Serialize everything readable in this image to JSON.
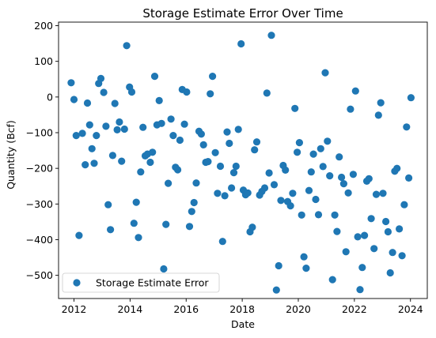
{
  "chart_data": {
    "type": "scatter",
    "title": "Storage Estimate Error Over Time",
    "xlabel": "Date",
    "ylabel": "Quantity (Bcf)",
    "xlim": [
      2011.45,
      2024.6
    ],
    "ylim": [
      -565,
      210
    ],
    "xticks": [
      2012,
      2014,
      2016,
      2018,
      2020,
      2022,
      2024
    ],
    "yticks": [
      200,
      100,
      0,
      -100,
      -200,
      -300,
      -400,
      -500
    ],
    "grid": false,
    "legend_position": "lower-left",
    "color": "#1f77b4",
    "series": [
      {
        "name": "Storage Estimate Error",
        "points": [
          [
            2011.9,
            40
          ],
          [
            2012.0,
            -7
          ],
          [
            2012.08,
            -108
          ],
          [
            2012.18,
            -388
          ],
          [
            2012.3,
            -102
          ],
          [
            2012.4,
            -190
          ],
          [
            2012.48,
            -17
          ],
          [
            2012.56,
            -78
          ],
          [
            2012.64,
            -145
          ],
          [
            2012.72,
            -186
          ],
          [
            2012.8,
            -108
          ],
          [
            2012.88,
            38
          ],
          [
            2012.96,
            52
          ],
          [
            2013.06,
            13
          ],
          [
            2013.14,
            -82
          ],
          [
            2013.22,
            -302
          ],
          [
            2013.3,
            -372
          ],
          [
            2013.38,
            -164
          ],
          [
            2013.46,
            -18
          ],
          [
            2013.54,
            -92
          ],
          [
            2013.62,
            -70
          ],
          [
            2013.7,
            -180
          ],
          [
            2013.8,
            -90
          ],
          [
            2013.88,
            144
          ],
          [
            2013.98,
            28
          ],
          [
            2014.06,
            14
          ],
          [
            2014.14,
            -354
          ],
          [
            2014.22,
            -295
          ],
          [
            2014.3,
            -394
          ],
          [
            2014.38,
            -210
          ],
          [
            2014.46,
            -85
          ],
          [
            2014.54,
            -165
          ],
          [
            2014.62,
            -160
          ],
          [
            2014.72,
            -183
          ],
          [
            2014.8,
            -155
          ],
          [
            2014.88,
            58
          ],
          [
            2014.96,
            -78
          ],
          [
            2015.04,
            -10
          ],
          [
            2015.12,
            -74
          ],
          [
            2015.2,
            -482
          ],
          [
            2015.28,
            -357
          ],
          [
            2015.36,
            -242
          ],
          [
            2015.46,
            -62
          ],
          [
            2015.54,
            -108
          ],
          [
            2015.62,
            -197
          ],
          [
            2015.7,
            -204
          ],
          [
            2015.78,
            -121
          ],
          [
            2015.86,
            21
          ],
          [
            2015.94,
            -76
          ],
          [
            2016.02,
            14
          ],
          [
            2016.12,
            -363
          ],
          [
            2016.2,
            -321
          ],
          [
            2016.28,
            -296
          ],
          [
            2016.36,
            -241
          ],
          [
            2016.46,
            -96
          ],
          [
            2016.54,
            -104
          ],
          [
            2016.62,
            -134
          ],
          [
            2016.7,
            -183
          ],
          [
            2016.78,
            -181
          ],
          [
            2016.86,
            9
          ],
          [
            2016.94,
            58
          ],
          [
            2017.04,
            -156
          ],
          [
            2017.12,
            -270
          ],
          [
            2017.22,
            -194
          ],
          [
            2017.3,
            -405
          ],
          [
            2017.38,
            -277
          ],
          [
            2017.46,
            -98
          ],
          [
            2017.54,
            -130
          ],
          [
            2017.62,
            -255
          ],
          [
            2017.7,
            -212
          ],
          [
            2017.78,
            -194
          ],
          [
            2017.86,
            -91
          ],
          [
            2017.96,
            149
          ],
          [
            2018.04,
            -261
          ],
          [
            2018.12,
            -274
          ],
          [
            2018.2,
            -269
          ],
          [
            2018.28,
            -378
          ],
          [
            2018.36,
            -365
          ],
          [
            2018.44,
            -148
          ],
          [
            2018.52,
            -126
          ],
          [
            2018.62,
            -275
          ],
          [
            2018.7,
            -265
          ],
          [
            2018.8,
            -255
          ],
          [
            2018.88,
            11
          ],
          [
            2018.96,
            -213
          ],
          [
            2019.04,
            173
          ],
          [
            2019.14,
            -246
          ],
          [
            2019.22,
            -541
          ],
          [
            2019.3,
            -473
          ],
          [
            2019.38,
            -290
          ],
          [
            2019.46,
            -192
          ],
          [
            2019.54,
            -205
          ],
          [
            2019.62,
            -293
          ],
          [
            2019.72,
            -305
          ],
          [
            2019.8,
            -270
          ],
          [
            2019.88,
            -32
          ],
          [
            2019.96,
            -155
          ],
          [
            2020.04,
            -128
          ],
          [
            2020.12,
            -331
          ],
          [
            2020.2,
            -448
          ],
          [
            2020.28,
            -480
          ],
          [
            2020.38,
            -262
          ],
          [
            2020.46,
            -210
          ],
          [
            2020.54,
            -160
          ],
          [
            2020.62,
            -287
          ],
          [
            2020.72,
            -330
          ],
          [
            2020.8,
            -145
          ],
          [
            2020.88,
            -195
          ],
          [
            2020.96,
            68
          ],
          [
            2021.04,
            -124
          ],
          [
            2021.12,
            -221
          ],
          [
            2021.22,
            -512
          ],
          [
            2021.3,
            -331
          ],
          [
            2021.38,
            -377
          ],
          [
            2021.46,
            -168
          ],
          [
            2021.54,
            -225
          ],
          [
            2021.62,
            -243
          ],
          [
            2021.7,
            -434
          ],
          [
            2021.78,
            -269
          ],
          [
            2021.86,
            -34
          ],
          [
            2021.96,
            -217
          ],
          [
            2022.04,
            17
          ],
          [
            2022.12,
            -392
          ],
          [
            2022.2,
            -540
          ],
          [
            2022.28,
            -478
          ],
          [
            2022.36,
            -388
          ],
          [
            2022.44,
            -236
          ],
          [
            2022.52,
            -229
          ],
          [
            2022.6,
            -341
          ],
          [
            2022.7,
            -425
          ],
          [
            2022.78,
            -273
          ],
          [
            2022.86,
            -51
          ],
          [
            2022.94,
            -16
          ],
          [
            2023.02,
            -270
          ],
          [
            2023.12,
            -349
          ],
          [
            2023.2,
            -378
          ],
          [
            2023.28,
            -493
          ],
          [
            2023.36,
            -436
          ],
          [
            2023.44,
            -208
          ],
          [
            2023.52,
            -200
          ],
          [
            2023.6,
            -370
          ],
          [
            2023.7,
            -445
          ],
          [
            2023.78,
            -302
          ],
          [
            2023.86,
            -84
          ],
          [
            2023.94,
            -227
          ],
          [
            2024.02,
            -2
          ]
        ]
      }
    ]
  }
}
